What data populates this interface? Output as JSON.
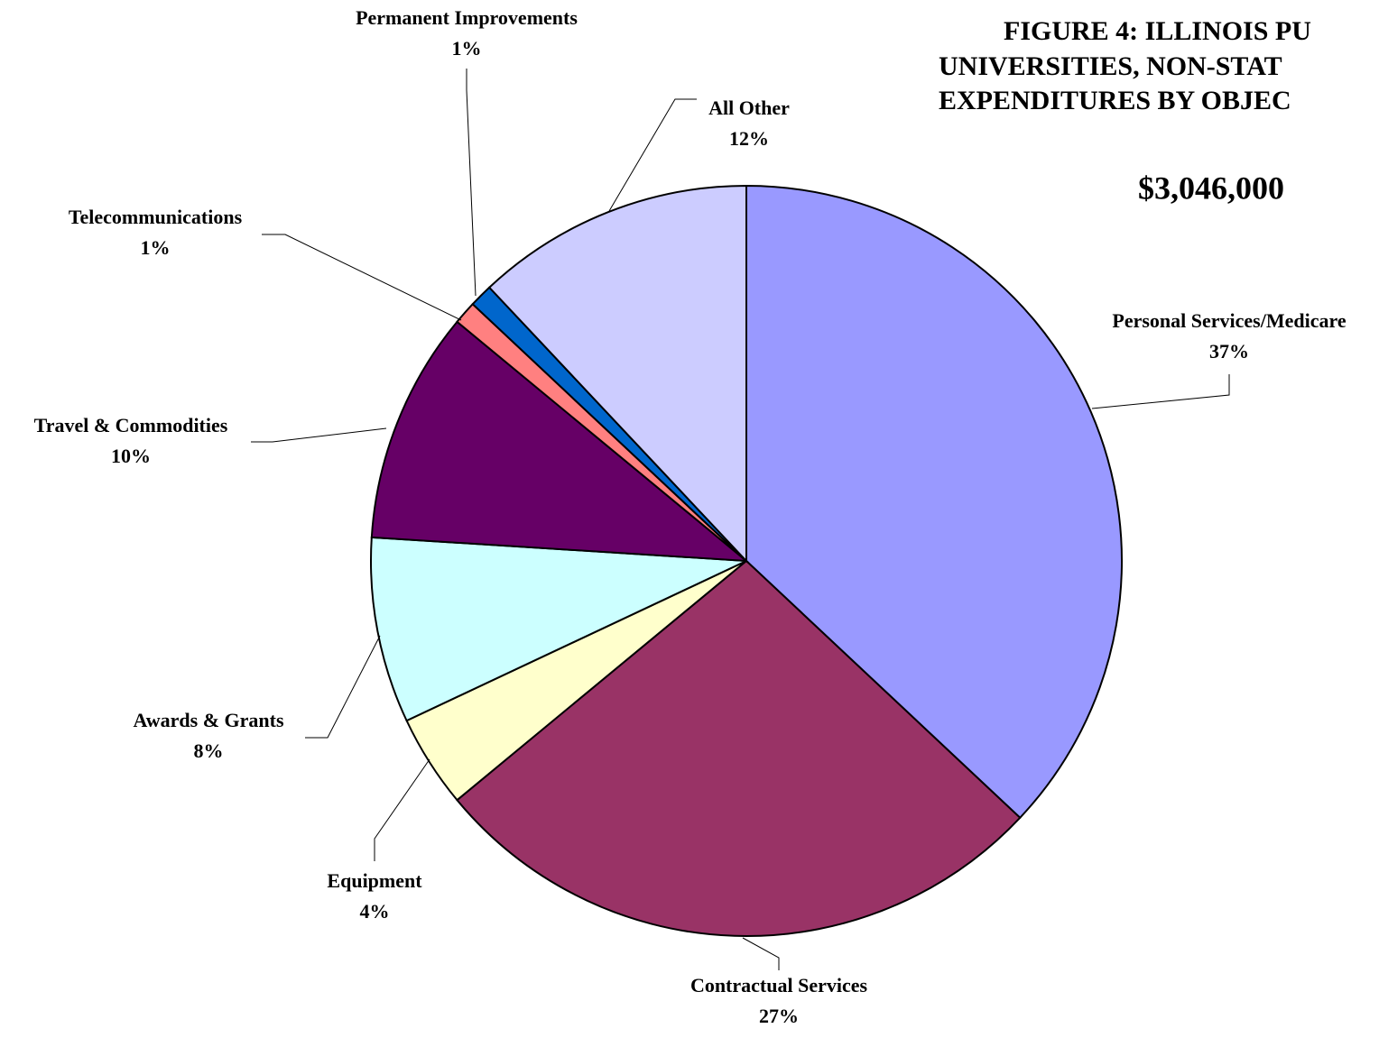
{
  "chart_data": {
    "type": "pie",
    "title_lines": [
      "FIGURE 4: ILLINOIS PU",
      "UNIVERSITIES, NON-STAT",
      "EXPENDITURES BY OBJEC"
    ],
    "subtitle": "$3,046,000",
    "categories": [
      "Personal Services/Medicare",
      "Contractual Services",
      "Equipment",
      "Awards & Grants",
      "Travel & Commodities",
      "Telecommunications",
      "Permanent Improvements",
      "All Other"
    ],
    "values": [
      37,
      27,
      4,
      8,
      10,
      1,
      1,
      12
    ],
    "value_labels": [
      "37%",
      "27%",
      "4%",
      "8%",
      "10%",
      "1%",
      "1%",
      "12%"
    ],
    "colors": [
      "#9999ff",
      "#993366",
      "#ffffcc",
      "#ccffff",
      "#660066",
      "#ff8080",
      "#0066cc",
      "#ccccff"
    ]
  }
}
